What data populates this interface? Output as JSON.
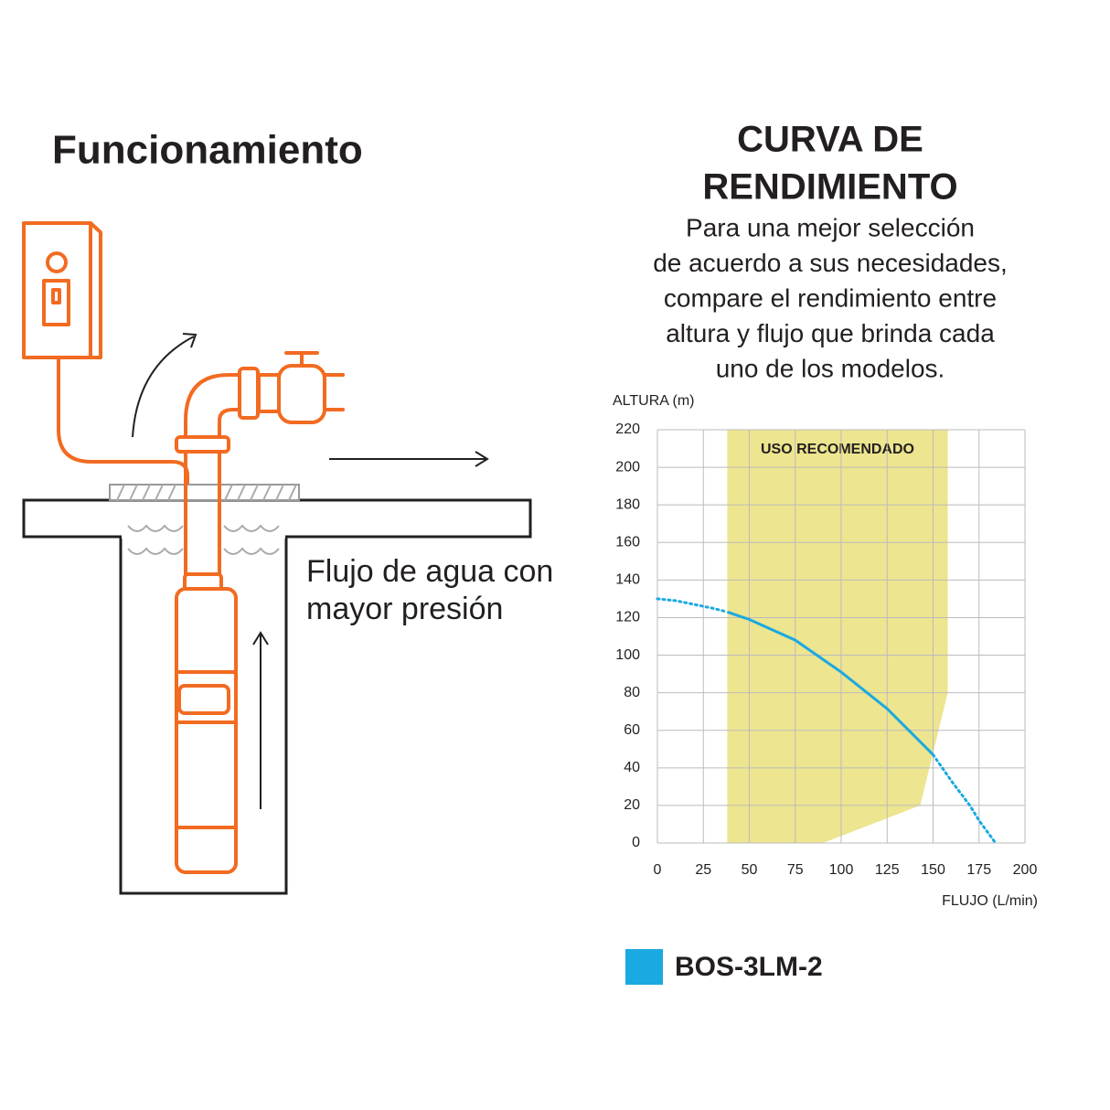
{
  "left": {
    "title": "Funcionamiento",
    "caption": [
      "Flujo de agua con",
      "mayor presión"
    ]
  },
  "chart_data": {
    "type": "line",
    "title": [
      "CURVA DE",
      "RENDIMIENTO"
    ],
    "subtitle": [
      "Para una mejor selección",
      "de acuerdo a sus necesidades,",
      "compare el rendimiento entre",
      "altura y flujo que brinda cada",
      "uno de los modelos."
    ],
    "y_label": "ALTURA (m)",
    "x_label": "FLUJO (L/min)",
    "xlim": [
      0,
      200
    ],
    "xticks": [
      0,
      25,
      50,
      75,
      100,
      125,
      150,
      175,
      200
    ],
    "ylim": [
      0,
      220
    ],
    "yticks": [
      0,
      20,
      40,
      60,
      80,
      100,
      120,
      140,
      160,
      180,
      200,
      220
    ],
    "grid": true,
    "recommended_zone": {
      "label": "USO RECOMENDADO",
      "color": "#ede58f",
      "x": [
        38,
        38,
        158,
        158,
        143,
        90
      ],
      "y": [
        0,
        220,
        220,
        80,
        20,
        0
      ]
    },
    "series": [
      {
        "name": "BOS-3LM-2",
        "color": "#1ba9e1",
        "segments": [
          {
            "style": "dotted",
            "x": [
              0,
              10,
              20,
              30,
              38
            ],
            "values": [
              130,
              129,
              127,
              125,
              123
            ]
          },
          {
            "style": "solid",
            "x": [
              38,
              50,
              75,
              100,
              125,
              150
            ],
            "values": [
              123,
              119,
              108,
              91,
              71.5,
              47
            ]
          },
          {
            "style": "dotted",
            "x": [
              150,
              160,
              170,
              175,
              184
            ],
            "values": [
              47,
              33,
              20,
              12,
              0
            ]
          }
        ]
      }
    ]
  }
}
